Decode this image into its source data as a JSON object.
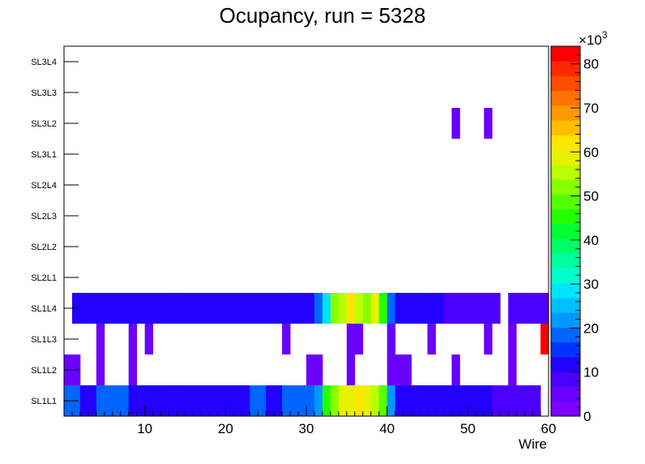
{
  "chart_data": {
    "type": "heatmap",
    "title": "Ocupancy, run = 5328",
    "xlabel": "Wire",
    "ylabel": "",
    "xlim": [
      0,
      60
    ],
    "x_ticks": [
      10,
      20,
      30,
      40,
      50,
      60
    ],
    "y_categories": [
      "SL1L1",
      "SL1L2",
      "SL1L3",
      "SL1L4",
      "SL2L1",
      "SL2L2",
      "SL2L3",
      "SL2L4",
      "SL3L1",
      "SL3L2",
      "SL3L3",
      "SL3L4"
    ],
    "colorbar": {
      "min": 0,
      "max": 84,
      "ticks": [
        0,
        10,
        20,
        30,
        40,
        50,
        60,
        70,
        80
      ],
      "multiplier_label": "×10",
      "multiplier_exponent": "3"
    },
    "cell_width": 1,
    "rows": {
      "SL1L1": [
        {
          "x": [
            0,
            2
          ],
          "v": 18
        },
        {
          "x": [
            2,
            4
          ],
          "v": 13
        },
        {
          "x": [
            4,
            8
          ],
          "v": 18
        },
        {
          "x": [
            8,
            23
          ],
          "v": 13
        },
        {
          "x": [
            23,
            25
          ],
          "v": 18
        },
        {
          "x": [
            25,
            27
          ],
          "v": 13
        },
        {
          "x": [
            27,
            31
          ],
          "v": 18
        },
        {
          "x": [
            31,
            32
          ],
          "v": 23
        },
        {
          "x": [
            32,
            33
          ],
          "v": 47
        },
        {
          "x": [
            33,
            34
          ],
          "v": 51
        },
        {
          "x": [
            34,
            36
          ],
          "v": 58
        },
        {
          "x": [
            36,
            37
          ],
          "v": 62
        },
        {
          "x": [
            37,
            38
          ],
          "v": 58
        },
        {
          "x": [
            38,
            39
          ],
          "v": 55
        },
        {
          "x": [
            39,
            40
          ],
          "v": 48
        },
        {
          "x": [
            40,
            41
          ],
          "v": 23
        },
        {
          "x": [
            41,
            53
          ],
          "v": 13
        },
        {
          "x": [
            53,
            59
          ],
          "v": 9
        }
      ],
      "SL1L2": [
        {
          "x": [
            0,
            2
          ],
          "v": 4
        },
        {
          "x": [
            4,
            5
          ],
          "v": 4
        },
        {
          "x": [
            8,
            9
          ],
          "v": 4
        },
        {
          "x": [
            30,
            32
          ],
          "v": 4
        },
        {
          "x": [
            35,
            36
          ],
          "v": 4
        },
        {
          "x": [
            40,
            43
          ],
          "v": 4
        },
        {
          "x": [
            48,
            49
          ],
          "v": 4
        },
        {
          "x": [
            55,
            56
          ],
          "v": 4
        }
      ],
      "SL1L3": [
        {
          "x": [
            4,
            5
          ],
          "v": 4
        },
        {
          "x": [
            8,
            9
          ],
          "v": 4
        },
        {
          "x": [
            10,
            11
          ],
          "v": 4
        },
        {
          "x": [
            27,
            28
          ],
          "v": 4
        },
        {
          "x": [
            35,
            37
          ],
          "v": 4
        },
        {
          "x": [
            40,
            41
          ],
          "v": 4
        },
        {
          "x": [
            45,
            46
          ],
          "v": 4
        },
        {
          "x": [
            52,
            53
          ],
          "v": 4
        },
        {
          "x": [
            55,
            56
          ],
          "v": 4
        },
        {
          "x": [
            59,
            60
          ],
          "v": 83
        }
      ],
      "SL1L4": [
        {
          "x": [
            1,
            31
          ],
          "v": 13
        },
        {
          "x": [
            31,
            32
          ],
          "v": 18
        },
        {
          "x": [
            32,
            33
          ],
          "v": 27
        },
        {
          "x": [
            33,
            34
          ],
          "v": 51
        },
        {
          "x": [
            34,
            35
          ],
          "v": 55
        },
        {
          "x": [
            35,
            36
          ],
          "v": 62
        },
        {
          "x": [
            36,
            37
          ],
          "v": 55
        },
        {
          "x": [
            37,
            38
          ],
          "v": 51
        },
        {
          "x": [
            38,
            39
          ],
          "v": 58
        },
        {
          "x": [
            39,
            40
          ],
          "v": 47
        },
        {
          "x": [
            40,
            41
          ],
          "v": 18
        },
        {
          "x": [
            41,
            47
          ],
          "v": 13
        },
        {
          "x": [
            47,
            54
          ],
          "v": 9
        },
        {
          "x": [
            55,
            60
          ],
          "v": 9
        }
      ],
      "SL3L2": [
        {
          "x": [
            48,
            49
          ],
          "v": 4
        },
        {
          "x": [
            52,
            53
          ],
          "v": 4
        }
      ]
    }
  }
}
